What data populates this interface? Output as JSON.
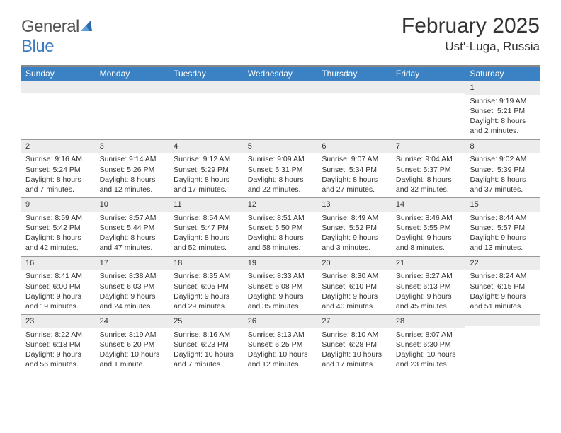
{
  "logo": {
    "text_general": "General",
    "text_blue": "Blue"
  },
  "title": "February 2025",
  "location": "Ust'-Luga, Russia",
  "weekdays": [
    "Sunday",
    "Monday",
    "Tuesday",
    "Wednesday",
    "Thursday",
    "Friday",
    "Saturday"
  ],
  "header_bg": "#3b82c4",
  "accent_line": "#888888",
  "weeks": [
    [
      {
        "empty": true
      },
      {
        "empty": true
      },
      {
        "empty": true
      },
      {
        "empty": true
      },
      {
        "empty": true
      },
      {
        "empty": true
      },
      {
        "n": "1",
        "sunrise": "9:19 AM",
        "sunset": "5:21 PM",
        "daylight": "8 hours and 2 minutes."
      }
    ],
    [
      {
        "n": "2",
        "sunrise": "9:16 AM",
        "sunset": "5:24 PM",
        "daylight": "8 hours and 7 minutes."
      },
      {
        "n": "3",
        "sunrise": "9:14 AM",
        "sunset": "5:26 PM",
        "daylight": "8 hours and 12 minutes."
      },
      {
        "n": "4",
        "sunrise": "9:12 AM",
        "sunset": "5:29 PM",
        "daylight": "8 hours and 17 minutes."
      },
      {
        "n": "5",
        "sunrise": "9:09 AM",
        "sunset": "5:31 PM",
        "daylight": "8 hours and 22 minutes."
      },
      {
        "n": "6",
        "sunrise": "9:07 AM",
        "sunset": "5:34 PM",
        "daylight": "8 hours and 27 minutes."
      },
      {
        "n": "7",
        "sunrise": "9:04 AM",
        "sunset": "5:37 PM",
        "daylight": "8 hours and 32 minutes."
      },
      {
        "n": "8",
        "sunrise": "9:02 AM",
        "sunset": "5:39 PM",
        "daylight": "8 hours and 37 minutes."
      }
    ],
    [
      {
        "n": "9",
        "sunrise": "8:59 AM",
        "sunset": "5:42 PM",
        "daylight": "8 hours and 42 minutes."
      },
      {
        "n": "10",
        "sunrise": "8:57 AM",
        "sunset": "5:44 PM",
        "daylight": "8 hours and 47 minutes."
      },
      {
        "n": "11",
        "sunrise": "8:54 AM",
        "sunset": "5:47 PM",
        "daylight": "8 hours and 52 minutes."
      },
      {
        "n": "12",
        "sunrise": "8:51 AM",
        "sunset": "5:50 PM",
        "daylight": "8 hours and 58 minutes."
      },
      {
        "n": "13",
        "sunrise": "8:49 AM",
        "sunset": "5:52 PM",
        "daylight": "9 hours and 3 minutes."
      },
      {
        "n": "14",
        "sunrise": "8:46 AM",
        "sunset": "5:55 PM",
        "daylight": "9 hours and 8 minutes."
      },
      {
        "n": "15",
        "sunrise": "8:44 AM",
        "sunset": "5:57 PM",
        "daylight": "9 hours and 13 minutes."
      }
    ],
    [
      {
        "n": "16",
        "sunrise": "8:41 AM",
        "sunset": "6:00 PM",
        "daylight": "9 hours and 19 minutes."
      },
      {
        "n": "17",
        "sunrise": "8:38 AM",
        "sunset": "6:03 PM",
        "daylight": "9 hours and 24 minutes."
      },
      {
        "n": "18",
        "sunrise": "8:35 AM",
        "sunset": "6:05 PM",
        "daylight": "9 hours and 29 minutes."
      },
      {
        "n": "19",
        "sunrise": "8:33 AM",
        "sunset": "6:08 PM",
        "daylight": "9 hours and 35 minutes."
      },
      {
        "n": "20",
        "sunrise": "8:30 AM",
        "sunset": "6:10 PM",
        "daylight": "9 hours and 40 minutes."
      },
      {
        "n": "21",
        "sunrise": "8:27 AM",
        "sunset": "6:13 PM",
        "daylight": "9 hours and 45 minutes."
      },
      {
        "n": "22",
        "sunrise": "8:24 AM",
        "sunset": "6:15 PM",
        "daylight": "9 hours and 51 minutes."
      }
    ],
    [
      {
        "n": "23",
        "sunrise": "8:22 AM",
        "sunset": "6:18 PM",
        "daylight": "9 hours and 56 minutes."
      },
      {
        "n": "24",
        "sunrise": "8:19 AM",
        "sunset": "6:20 PM",
        "daylight": "10 hours and 1 minute."
      },
      {
        "n": "25",
        "sunrise": "8:16 AM",
        "sunset": "6:23 PM",
        "daylight": "10 hours and 7 minutes."
      },
      {
        "n": "26",
        "sunrise": "8:13 AM",
        "sunset": "6:25 PM",
        "daylight": "10 hours and 12 minutes."
      },
      {
        "n": "27",
        "sunrise": "8:10 AM",
        "sunset": "6:28 PM",
        "daylight": "10 hours and 17 minutes."
      },
      {
        "n": "28",
        "sunrise": "8:07 AM",
        "sunset": "6:30 PM",
        "daylight": "10 hours and 23 minutes."
      },
      {
        "empty": true
      }
    ]
  ],
  "labels": {
    "sunrise": "Sunrise:",
    "sunset": "Sunset:",
    "daylight": "Daylight:"
  }
}
